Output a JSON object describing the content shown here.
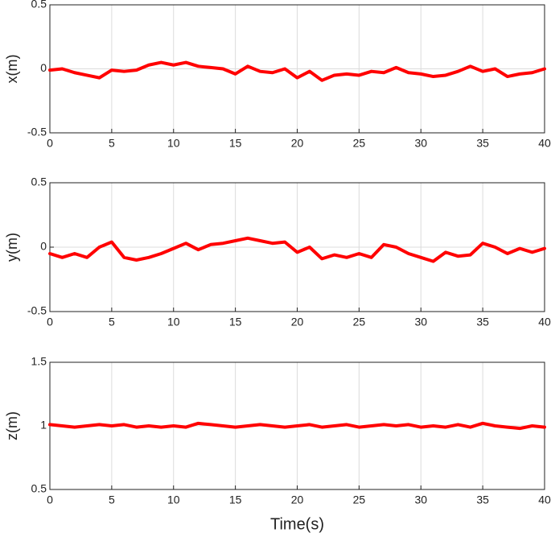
{
  "chart_data": [
    {
      "type": "line",
      "ylabel": "x(m)",
      "color": "#ff0000",
      "grid": true,
      "x": [
        0,
        1,
        2,
        3,
        4,
        5,
        6,
        7,
        8,
        9,
        10,
        11,
        12,
        13,
        14,
        15,
        16,
        17,
        18,
        19,
        20,
        21,
        22,
        23,
        24,
        25,
        26,
        27,
        28,
        29,
        30,
        31,
        32,
        33,
        34,
        35,
        36,
        37,
        38,
        39,
        40
      ],
      "values": [
        -0.01,
        0.0,
        -0.03,
        -0.05,
        -0.07,
        -0.01,
        -0.02,
        -0.01,
        0.03,
        0.05,
        0.03,
        0.05,
        0.02,
        0.01,
        0.0,
        -0.04,
        0.02,
        -0.02,
        -0.03,
        0.0,
        -0.07,
        -0.02,
        -0.09,
        -0.05,
        -0.04,
        -0.05,
        -0.02,
        -0.03,
        0.01,
        -0.03,
        -0.04,
        -0.06,
        -0.05,
        -0.02,
        0.02,
        -0.02,
        0.0,
        -0.06,
        -0.04,
        -0.03,
        0.0
      ],
      "xlim": [
        0,
        40
      ],
      "xticks": [
        0,
        5,
        10,
        15,
        20,
        25,
        30,
        35,
        40
      ],
      "ylim": [
        -0.5,
        0.5
      ],
      "yticks": [
        -0.5,
        0,
        0.5
      ]
    },
    {
      "type": "line",
      "ylabel": "y(m)",
      "color": "#ff0000",
      "grid": true,
      "x": [
        0,
        1,
        2,
        3,
        4,
        5,
        6,
        7,
        8,
        9,
        10,
        11,
        12,
        13,
        14,
        15,
        16,
        17,
        18,
        19,
        20,
        21,
        22,
        23,
        24,
        25,
        26,
        27,
        28,
        29,
        30,
        31,
        32,
        33,
        34,
        35,
        36,
        37,
        38,
        39,
        40
      ],
      "values": [
        -0.05,
        -0.08,
        -0.05,
        -0.08,
        0.0,
        0.04,
        -0.08,
        -0.1,
        -0.08,
        -0.05,
        -0.01,
        0.03,
        -0.02,
        0.02,
        0.03,
        0.05,
        0.07,
        0.05,
        0.03,
        0.04,
        -0.04,
        0.0,
        -0.09,
        -0.06,
        -0.08,
        -0.05,
        -0.08,
        0.02,
        0.0,
        -0.05,
        -0.08,
        -0.11,
        -0.04,
        -0.07,
        -0.06,
        0.03,
        0.0,
        -0.05,
        -0.01,
        -0.04,
        -0.01
      ],
      "xlim": [
        0,
        40
      ],
      "xticks": [
        0,
        5,
        10,
        15,
        20,
        25,
        30,
        35,
        40
      ],
      "ylim": [
        -0.5,
        0.5
      ],
      "yticks": [
        -0.5,
        0,
        0.5
      ]
    },
    {
      "type": "line",
      "ylabel": "z(m)",
      "xlabel": "Time(s)",
      "color": "#ff0000",
      "grid": true,
      "x": [
        0,
        1,
        2,
        3,
        4,
        5,
        6,
        7,
        8,
        9,
        10,
        11,
        12,
        13,
        14,
        15,
        16,
        17,
        18,
        19,
        20,
        21,
        22,
        23,
        24,
        25,
        26,
        27,
        28,
        29,
        30,
        31,
        32,
        33,
        34,
        35,
        36,
        37,
        38,
        39,
        40
      ],
      "values": [
        1.01,
        1.0,
        0.99,
        1.0,
        1.01,
        1.0,
        1.01,
        0.99,
        1.0,
        0.99,
        1.0,
        0.99,
        1.02,
        1.01,
        1.0,
        0.99,
        1.0,
        1.01,
        1.0,
        0.99,
        1.0,
        1.01,
        0.99,
        1.0,
        1.01,
        0.99,
        1.0,
        1.01,
        1.0,
        1.01,
        0.99,
        1.0,
        0.99,
        1.01,
        0.99,
        1.02,
        1.0,
        0.99,
        0.98,
        1.0,
        0.99
      ],
      "xlim": [
        0,
        40
      ],
      "xticks": [
        0,
        5,
        10,
        15,
        20,
        25,
        30,
        35,
        40
      ],
      "ylim": [
        0.5,
        1.5
      ],
      "yticks": [
        0.5,
        1,
        1.5
      ]
    }
  ]
}
